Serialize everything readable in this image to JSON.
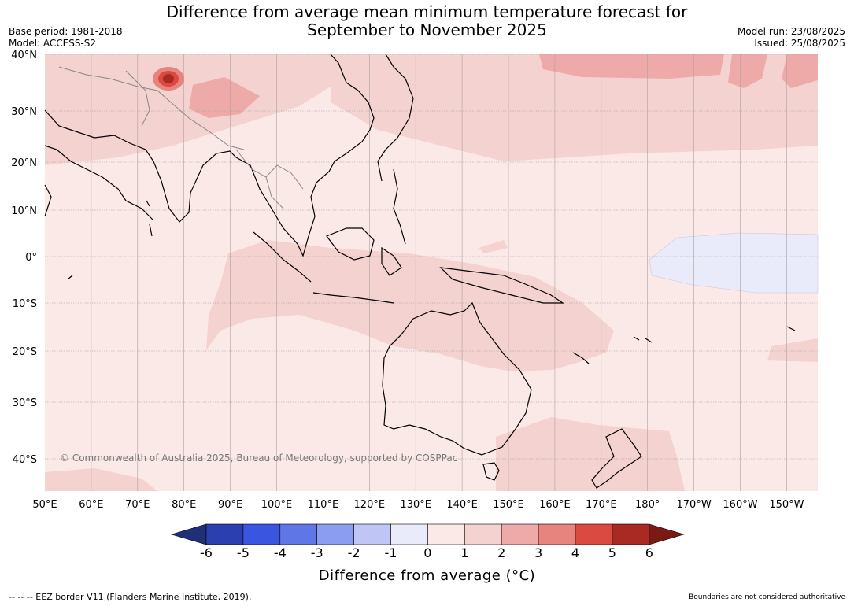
{
  "title_line1": "Difference from average mean minimum temperature forecast for",
  "title_line2": "September to November 2025",
  "base_period": "Base period: 1981-2018",
  "model": "Model: ACCESS-S2",
  "model_run": "Model run: 23/08/2025",
  "issued": "Issued: 25/08/2025",
  "copyright": "© Commonwealth of Australia 2025, Bureau of Meteorology, supported by COSPPac",
  "latitudes": [
    "40°N",
    "30°N",
    "20°N",
    "10°N",
    "0°",
    "10°S",
    "20°S",
    "30°S",
    "40°S"
  ],
  "longitudes": [
    "50°E",
    "60°E",
    "70°E",
    "80°E",
    "90°E",
    "100°E",
    "110°E",
    "120°E",
    "130°E",
    "140°E",
    "150°E",
    "160°E",
    "170°E",
    "180°",
    "170°W",
    "160°W",
    "150°W"
  ],
  "colorbar": {
    "title": "Difference from average (°C)",
    "ticks": [
      "-6",
      "-5",
      "-4",
      "-3",
      "-2",
      "-1",
      "0",
      "1",
      "2",
      "3",
      "4",
      "5",
      "6"
    ],
    "colors": [
      "#1f2f7a",
      "#2b3fb0",
      "#3a55e0",
      "#5f77e6",
      "#8b9df0",
      "#bfc6f5",
      "#e9ebfb",
      "#fbe9e8",
      "#f4d2d0",
      "#eeaaa8",
      "#e7847e",
      "#da4a40",
      "#a82a22",
      "#7a1a14"
    ]
  },
  "footer_left": "--  --  -- EEZ border V11 (Flanders Marine Institute, 2019).",
  "footer_right": "Boundaries are not considered authoritative"
}
